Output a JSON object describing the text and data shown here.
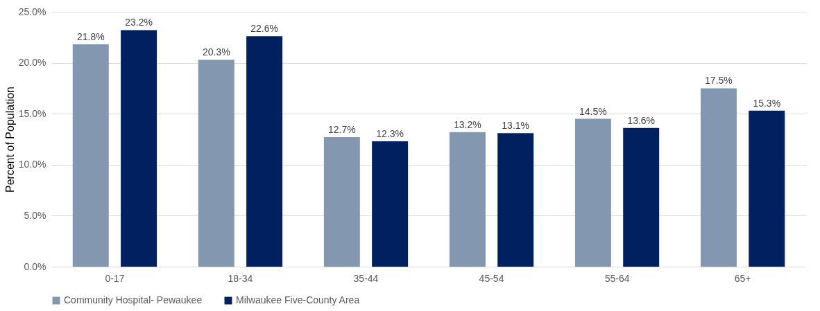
{
  "chart_data": {
    "type": "bar",
    "ylabel": "Percent of Population",
    "categories": [
      "0-17",
      "18-34",
      "35-44",
      "45-54",
      "55-64",
      "65+"
    ],
    "series": [
      {
        "name": "Community Hospital- Pewaukee",
        "color": "#8497b0",
        "values": [
          21.8,
          20.3,
          12.7,
          13.2,
          14.5,
          17.5
        ],
        "value_labels": [
          "21.8%",
          "20.3%",
          "12.7%",
          "13.2%",
          "14.5%",
          "17.5%"
        ]
      },
      {
        "name": "Milwaukee Five-County Area",
        "color": "#002060",
        "values": [
          23.2,
          22.6,
          12.3,
          13.1,
          13.6,
          15.3
        ],
        "value_labels": [
          "23.2%",
          "22.6%",
          "12.3%",
          "13.1%",
          "13.6%",
          "15.3%"
        ]
      }
    ],
    "ylim": [
      0,
      25
    ],
    "yticks": [
      {
        "value": 0,
        "label": "0.0%"
      },
      {
        "value": 5,
        "label": "5.0%"
      },
      {
        "value": 10,
        "label": "10.0%"
      },
      {
        "value": 15,
        "label": "15.0%"
      },
      {
        "value": 20,
        "label": "20.0%"
      },
      {
        "value": 25,
        "label": "25.0%"
      }
    ],
    "grid": "y",
    "legend": "bottom"
  }
}
